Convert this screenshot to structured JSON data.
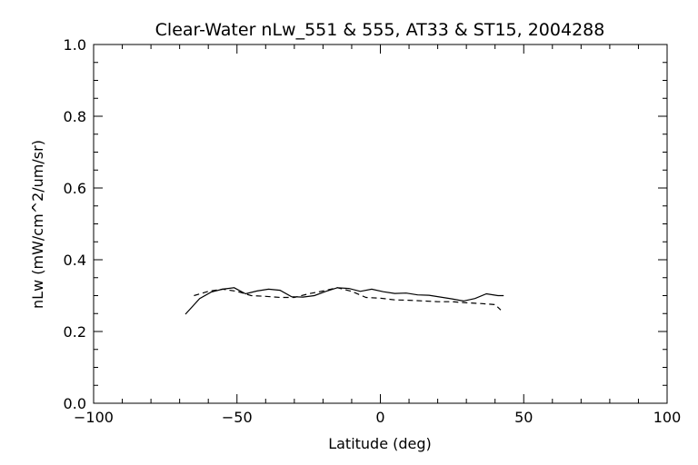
{
  "chart_data": {
    "type": "line",
    "title": "Clear-Water nLw_551 & 555, AT33 & ST15, 2004288",
    "xlabel": "Latitude (deg)",
    "ylabel": "nLw (mW/cm^2/um/sr)",
    "xlim": [
      -100,
      100
    ],
    "ylim": [
      0.0,
      1.0
    ],
    "x_ticks": [
      -100,
      -50,
      0,
      50,
      100
    ],
    "x_tick_labels": [
      "−100",
      "−50",
      "0",
      "50",
      "100"
    ],
    "y_ticks": [
      0.0,
      0.2,
      0.4,
      0.6,
      0.8,
      1.0
    ],
    "y_tick_labels": [
      "0.0",
      "0.2",
      "0.4",
      "0.6",
      "0.8",
      "1.0"
    ],
    "grid": false,
    "series": [
      {
        "style": "solid",
        "color": "#000000",
        "x": [
          -68,
          -63,
          -59,
          -55,
          -51,
          -47,
          -43,
          -39,
          -35,
          -31,
          -27,
          -23,
          -19,
          -15,
          -11,
          -7,
          -3,
          1,
          5,
          9,
          13,
          17,
          21,
          25,
          29,
          33,
          37,
          41,
          43
        ],
        "y": [
          0.248,
          0.292,
          0.31,
          0.318,
          0.322,
          0.305,
          0.313,
          0.318,
          0.315,
          0.297,
          0.296,
          0.3,
          0.312,
          0.322,
          0.32,
          0.312,
          0.318,
          0.311,
          0.306,
          0.307,
          0.302,
          0.301,
          0.296,
          0.291,
          0.285,
          0.292,
          0.305,
          0.3,
          0.3
        ]
      },
      {
        "style": "dashed",
        "color": "#000000",
        "x": [
          -65,
          -60,
          -55,
          -50,
          -45,
          -40,
          -35,
          -30,
          -25,
          -20,
          -15,
          -10,
          -5,
          0,
          5,
          10,
          15,
          20,
          25,
          30,
          35,
          40,
          42
        ],
        "y": [
          0.3,
          0.312,
          0.318,
          0.312,
          0.3,
          0.298,
          0.295,
          0.295,
          0.305,
          0.313,
          0.322,
          0.312,
          0.295,
          0.293,
          0.288,
          0.287,
          0.285,
          0.283,
          0.283,
          0.28,
          0.278,
          0.275,
          0.26
        ]
      }
    ]
  }
}
